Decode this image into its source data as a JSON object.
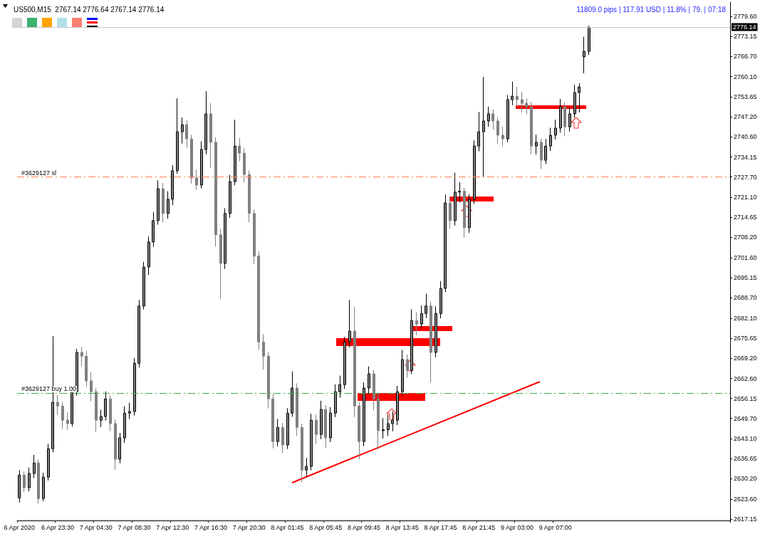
{
  "chart_data": {
    "type": "candlestick",
    "title": "US500,M15  2767.14 2776.64 2767.14 2776.14",
    "annotations": [
      "11809.0 pips | 117.91 USD | 11.8% | 79. | 07:18"
    ],
    "categories": [
      "6 Apr 2020",
      null,
      null,
      null,
      null,
      null,
      null,
      null,
      "6 Apr 23:30",
      null,
      null,
      null,
      null,
      null,
      null,
      null,
      "7 Apr 04:30",
      null,
      null,
      null,
      null,
      null,
      null,
      null,
      "7 Apr 08:30",
      null,
      null,
      null,
      null,
      null,
      null,
      null,
      "7 Apr 12:30",
      null,
      null,
      null,
      null,
      null,
      null,
      null,
      "7 Apr 16:30",
      null,
      null,
      null,
      null,
      null,
      null,
      null,
      "7 Apr 20:30",
      null,
      null,
      null,
      null,
      null,
      null,
      null,
      "8 Apr 01:45",
      null,
      null,
      null,
      null,
      null,
      null,
      null,
      "8 Apr 05:45",
      null,
      null,
      null,
      null,
      null,
      null,
      null,
      "8 Apr 09:45",
      null,
      null,
      null,
      null,
      null,
      null,
      null,
      "8 Apr 13:45",
      null,
      null,
      null,
      null,
      null,
      null,
      null,
      "8 Apr 17:45",
      null,
      null,
      null,
      null,
      null,
      null,
      null,
      "8 Apr 21:45",
      null,
      null,
      null,
      null,
      null,
      null,
      null,
      "9 Apr 03:00",
      null,
      null,
      null,
      null,
      null,
      null,
      null,
      "9 Apr 07:00",
      null,
      null,
      null,
      null,
      null,
      null,
      null,
      null,
      null,
      null,
      null,
      null,
      null,
      null,
      null,
      null,
      null,
      null,
      null,
      null,
      null,
      null,
      null,
      null,
      null,
      null,
      null,
      null,
      null,
      null,
      null,
      null,
      null,
      null,
      null,
      null
    ],
    "series": [
      {
        "type": "candlestick",
        "color": "#808080",
        "ohlc": [
          [
            2624.0,
            2633.0,
            2622.5,
            2631.4
          ],
          [
            2631.4,
            2632.6,
            2625.9,
            2627.3
          ],
          [
            2627.3,
            2633.8,
            2626.1,
            2631.9
          ],
          [
            2631.9,
            2637.9,
            2630.4,
            2635.3
          ],
          [
            2635.3,
            2636.5,
            2622.2,
            2623.8
          ],
          [
            2623.8,
            2632.1,
            2622.9,
            2630.7
          ],
          [
            2630.7,
            2641.5,
            2629.6,
            2639.9
          ],
          [
            2639.9,
            2676.3,
            2638.7,
            2654.9
          ],
          [
            2654.9,
            2657.2,
            2650.8,
            2653.7
          ],
          [
            2653.7,
            2655.0,
            2646.3,
            2649.1
          ],
          [
            2649.1,
            2651.6,
            2646.0,
            2648.0
          ],
          [
            2648.0,
            2660.0,
            2647.1,
            2658.3
          ],
          [
            2658.3,
            2672.2,
            2657.0,
            2671.0
          ],
          [
            2671.0,
            2672.8,
            2666.5,
            2669.8
          ],
          [
            2669.8,
            2671.4,
            2659.9,
            2661.8
          ],
          [
            2661.8,
            2664.6,
            2655.2,
            2658.3
          ],
          [
            2658.3,
            2659.5,
            2645.3,
            2649.1
          ],
          [
            2649.1,
            2652.5,
            2646.9,
            2650.3
          ],
          [
            2650.3,
            2658.4,
            2649.0,
            2656.0
          ],
          [
            2656.0,
            2657.1,
            2645.6,
            2648.0
          ],
          [
            2648.0,
            2649.3,
            2633.0,
            2636.5
          ],
          [
            2636.5,
            2645.0,
            2635.2,
            2643.4
          ],
          [
            2643.4,
            2653.6,
            2641.8,
            2651.4
          ],
          [
            2651.4,
            2654.7,
            2649.5,
            2651.9
          ],
          [
            2651.9,
            2669.2,
            2650.6,
            2667.5
          ],
          [
            2667.5,
            2688.0,
            2666.1,
            2686.0
          ],
          [
            2686.0,
            2700.3,
            2684.9,
            2698.6
          ],
          [
            2698.6,
            2708.5,
            2696.0,
            2706.7
          ],
          [
            2706.7,
            2716.4,
            2705.1,
            2713.6
          ],
          [
            2713.6,
            2726.6,
            2712.3,
            2723.9
          ],
          [
            2723.9,
            2725.8,
            2713.0,
            2715.9
          ],
          [
            2715.9,
            2723.1,
            2714.2,
            2720.5
          ],
          [
            2720.5,
            2731.5,
            2718.6,
            2729.7
          ],
          [
            2729.7,
            2753.1,
            2728.8,
            2742.3
          ],
          [
            2742.3,
            2746.9,
            2738.5,
            2744.6
          ],
          [
            2744.6,
            2746.0,
            2737.2,
            2740.0
          ],
          [
            2740.0,
            2741.3,
            2725.6,
            2727.4
          ],
          [
            2727.4,
            2730.0,
            2723.6,
            2725.1
          ],
          [
            2725.1,
            2739.2,
            2724.0,
            2736.6
          ],
          [
            2736.6,
            2755.4,
            2735.0,
            2748.1
          ],
          [
            2748.1,
            2751.6,
            2730.5,
            2738.9
          ],
          [
            2738.9,
            2740.5,
            2705.2,
            2709.0
          ],
          [
            2709.0,
            2711.0,
            2688.3,
            2699.8
          ],
          [
            2699.8,
            2717.6,
            2698.0,
            2715.9
          ],
          [
            2715.9,
            2728.4,
            2714.5,
            2726.2
          ],
          [
            2726.2,
            2746.2,
            2725.0,
            2737.7
          ],
          [
            2737.7,
            2740.3,
            2732.8,
            2735.4
          ],
          [
            2735.4,
            2737.0,
            2725.9,
            2728.5
          ],
          [
            2728.5,
            2729.8,
            2713.0,
            2715.9
          ],
          [
            2715.9,
            2717.2,
            2699.5,
            2702.1
          ],
          [
            2702.1,
            2703.6,
            2671.8,
            2674.4
          ],
          [
            2674.4,
            2677.0,
            2665.4,
            2669.8
          ],
          [
            2669.8,
            2671.1,
            2652.9,
            2656.0
          ],
          [
            2656.0,
            2657.6,
            2640.0,
            2642.2
          ],
          [
            2642.2,
            2649.5,
            2640.6,
            2646.8
          ],
          [
            2646.8,
            2648.2,
            2638.5,
            2641.1
          ],
          [
            2641.1,
            2653.0,
            2639.8,
            2651.4
          ],
          [
            2651.4,
            2664.9,
            2650.2,
            2659.5
          ],
          [
            2659.5,
            2661.0,
            2644.1,
            2646.8
          ],
          [
            2646.8,
            2648.0,
            2629.1,
            2633.0
          ],
          [
            2633.0,
            2636.9,
            2630.8,
            2634.2
          ],
          [
            2634.2,
            2651.2,
            2632.9,
            2649.1
          ],
          [
            2649.1,
            2651.0,
            2641.3,
            2644.5
          ],
          [
            2644.5,
            2655.4,
            2643.0,
            2652.6
          ],
          [
            2652.6,
            2654.0,
            2640.2,
            2643.4
          ],
          [
            2643.4,
            2653.3,
            2642.0,
            2651.4
          ],
          [
            2651.4,
            2660.7,
            2650.1,
            2658.3
          ],
          [
            2658.3,
            2663.5,
            2656.4,
            2660.6
          ],
          [
            2660.6,
            2676.0,
            2659.2,
            2674.4
          ],
          [
            2674.4,
            2687.9,
            2672.6,
            2677.9
          ],
          [
            2677.9,
            2685.8,
            2650.1,
            2653.7
          ],
          [
            2653.7,
            2655.0,
            2636.5,
            2642.2
          ],
          [
            2642.2,
            2661.3,
            2640.7,
            2659.5
          ],
          [
            2659.5,
            2666.5,
            2657.6,
            2664.1
          ],
          [
            2664.1,
            2665.4,
            2652.3,
            2656.0
          ],
          [
            2656.0,
            2658.0,
            2639.6,
            2645.7
          ],
          [
            2645.7,
            2649.8,
            2643.2,
            2646.0
          ],
          [
            2646.0,
            2650.9,
            2644.0,
            2648.0
          ],
          [
            2648.0,
            2652.0,
            2645.5,
            2649.1
          ],
          [
            2649.1,
            2660.2,
            2647.5,
            2658.3
          ],
          [
            2658.3,
            2671.8,
            2657.0,
            2668.7
          ],
          [
            2668.7,
            2670.3,
            2662.9,
            2665.2
          ],
          [
            2665.2,
            2684.9,
            2664.0,
            2681.3
          ],
          [
            2681.3,
            2684.0,
            2676.5,
            2680.2
          ],
          [
            2680.2,
            2686.2,
            2678.8,
            2683.6
          ],
          [
            2683.6,
            2690.0,
            2682.1,
            2686.0
          ],
          [
            2686.0,
            2687.4,
            2661.3,
            2671.0
          ],
          [
            2671.0,
            2685.9,
            2669.4,
            2683.6
          ],
          [
            2683.6,
            2694.0,
            2682.0,
            2691.7
          ],
          [
            2691.7,
            2722.0,
            2690.5,
            2719.3
          ],
          [
            2719.3,
            2721.4,
            2711.0,
            2713.6
          ],
          [
            2713.6,
            2729.1,
            2712.0,
            2722.8
          ],
          [
            2722.8,
            2726.0,
            2719.5,
            2723.1
          ],
          [
            2723.1,
            2724.2,
            2708.0,
            2711.3
          ],
          [
            2711.3,
            2722.1,
            2709.6,
            2720.5
          ],
          [
            2720.5,
            2739.5,
            2719.0,
            2737.7
          ],
          [
            2737.7,
            2748.7,
            2736.0,
            2742.3
          ],
          [
            2742.3,
            2760.0,
            2727.7,
            2745.8
          ],
          [
            2745.8,
            2750.4,
            2743.9,
            2748.1
          ],
          [
            2748.1,
            2749.5,
            2743.0,
            2745.8
          ],
          [
            2745.8,
            2747.0,
            2738.4,
            2741.2
          ],
          [
            2741.2,
            2744.0,
            2737.6,
            2740.0
          ],
          [
            2740.0,
            2754.2,
            2738.9,
            2752.7
          ],
          [
            2752.7,
            2758.5,
            2750.9,
            2753.8
          ],
          [
            2753.8,
            2756.8,
            2750.0,
            2752.7
          ],
          [
            2752.7,
            2755.2,
            2748.6,
            2751.5
          ],
          [
            2751.5,
            2753.0,
            2748.0,
            2750.4
          ],
          [
            2750.4,
            2751.9,
            2735.1,
            2737.7
          ],
          [
            2737.7,
            2741.4,
            2735.0,
            2738.9
          ],
          [
            2738.9,
            2740.2,
            2730.3,
            2733.1
          ],
          [
            2733.1,
            2740.0,
            2731.9,
            2737.7
          ],
          [
            2737.7,
            2743.6,
            2736.1,
            2741.2
          ],
          [
            2741.2,
            2746.2,
            2739.8,
            2743.5
          ],
          [
            2743.5,
            2752.9,
            2742.0,
            2750.4
          ],
          [
            2750.4,
            2751.7,
            2740.9,
            2743.9
          ],
          [
            2743.9,
            2750.3,
            2742.4,
            2748.1
          ],
          [
            2748.1,
            2757.5,
            2746.8,
            2755.0
          ],
          [
            2755.0,
            2758.0,
            2748.6,
            2756.8
          ],
          [
            2766.5,
            2773.0,
            2761.2,
            2768.3
          ],
          [
            2768.3,
            2776.6,
            2767.1,
            2776.1
          ],
          null,
          null,
          null,
          null,
          null,
          null,
          null,
          null,
          null,
          null,
          null,
          null,
          null,
          null,
          null,
          null,
          null,
          null,
          null,
          null,
          null,
          null,
          null,
          null,
          null,
          null,
          null,
          null,
          null
        ]
      }
    ],
    "ylim": [
      2616.7,
      2784.2
    ],
    "yticks": [
      {
        "value": 2779.6,
        "label": "2779.60"
      },
      2773.15,
      {
        "value": 2766.7,
        "label": "2766.70"
      },
      {
        "value": 2760.1,
        "label": "2760.10"
      },
      2753.65,
      {
        "value": 2747.2,
        "label": "2747.20"
      },
      {
        "value": 2740.6,
        "label": "2740.60"
      },
      2734.15,
      {
        "value": 2727.7,
        "label": "2727.70"
      },
      {
        "value": 2721.1,
        "label": "2721.10"
      },
      2714.65,
      {
        "value": 2708.2,
        "label": "2708.20"
      },
      {
        "value": 2701.6,
        "label": "2701.60"
      },
      2695.15,
      {
        "value": 2688.7,
        "label": "2688.70"
      },
      {
        "value": 2682.1,
        "label": "2682.10"
      },
      2675.65,
      {
        "value": 2669.2,
        "label": "2669.20"
      },
      {
        "value": 2662.6,
        "label": "2662.60"
      },
      2656.15,
      {
        "value": 2649.7,
        "label": "2649.70"
      },
      {
        "value": 2643.1,
        "label": "2643.10"
      },
      2636.65,
      {
        "value": 2630.2,
        "label": "2630.20"
      },
      {
        "value": 2623.6,
        "label": "2623.60"
      },
      2617.15
    ],
    "ref_lines": [
      {
        "axis": "y",
        "value": 2727.8,
        "label": "#3629127 sl",
        "color": "#ff7f50",
        "line_style": "dashed"
      },
      {
        "axis": "y",
        "value": 2657.9,
        "label": "#3629127 buy 1.00",
        "color": "#3cb043",
        "line_style": "dashed"
      },
      {
        "axis": "y",
        "value": 2776.14,
        "label": "2776.14",
        "color": "#c8c8c8",
        "line_style": "solid"
      }
    ],
    "grid": false
  }
}
